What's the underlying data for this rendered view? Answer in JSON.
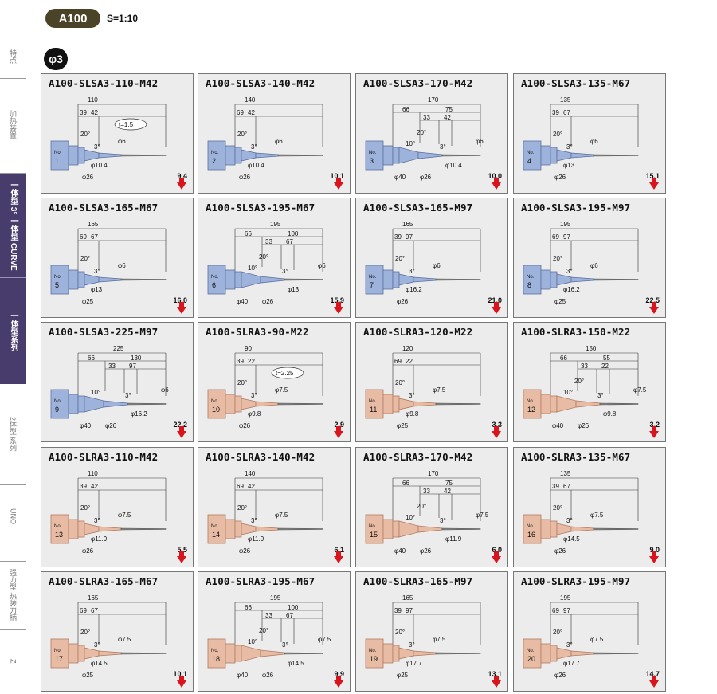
{
  "header": {
    "badge": "A100",
    "scale": "S=1:10",
    "section": "φ3"
  },
  "sidebar": {
    "items": [
      {
        "label": "特点",
        "active": false
      },
      {
        "label": "加热装置",
        "active": false
      },
      {
        "label": "一体型 3° 一体型 CURVE",
        "active": false
      },
      {
        "label": "一体型系列",
        "active": true
      },
      {
        "label": "2体型 系列",
        "active": false
      },
      {
        "label": "UNO",
        "active": false
      },
      {
        "label": "强力型 热装刀柄",
        "active": false
      },
      {
        "label": "Z",
        "active": false
      }
    ]
  },
  "colors": {
    "blue_holder": "#9eb3dc",
    "pink_holder": "#e8bca4",
    "arrow": "#d8141c",
    "card_bg": "#ececec"
  },
  "cards": [
    {
      "title": "A100-SLSA3-110-M42",
      "no": "1",
      "type": "blue",
      "dims": [
        "110",
        "39",
        "42",
        "20°",
        "3°",
        "φ6",
        "φ10.4",
        "φ26"
      ],
      "t": "t=1.5",
      "weight": "9.4"
    },
    {
      "title": "A100-SLSA3-140-M42",
      "no": "2",
      "type": "blue",
      "dims": [
        "140",
        "69",
        "42",
        "20°",
        "3°",
        "φ6",
        "φ10.4",
        "φ26"
      ],
      "t": "",
      "weight": "10.1"
    },
    {
      "title": "A100-SLSA3-170-M42",
      "no": "3",
      "type": "blue",
      "dims": [
        "170",
        "66",
        "75",
        "33",
        "42",
        "10°",
        "20°",
        "3°",
        "φ6",
        "φ10.4",
        "φ40",
        "φ26"
      ],
      "t": "",
      "weight": "10.0"
    },
    {
      "title": "A100-SLSA3-135-M67",
      "no": "4",
      "type": "blue",
      "dims": [
        "135",
        "39",
        "67",
        "20°",
        "3°",
        "φ6",
        "φ13",
        "φ26"
      ],
      "t": "",
      "weight": "15.1"
    },
    {
      "title": "A100-SLSA3-165-M67",
      "no": "5",
      "type": "blue",
      "dims": [
        "165",
        "69",
        "67",
        "20°",
        "3°",
        "φ6",
        "φ13",
        "φ25"
      ],
      "t": "",
      "weight": "16.0"
    },
    {
      "title": "A100-SLSA3-195-M67",
      "no": "6",
      "type": "blue",
      "dims": [
        "195",
        "66",
        "100",
        "33",
        "67",
        "10°",
        "20°",
        "3°",
        "φ6",
        "φ13",
        "φ40",
        "φ26"
      ],
      "t": "",
      "weight": "15.9"
    },
    {
      "title": "A100-SLSA3-165-M97",
      "no": "7",
      "type": "blue",
      "dims": [
        "165",
        "39",
        "97",
        "20°",
        "3°",
        "φ6",
        "φ16.2",
        "φ26"
      ],
      "t": "",
      "weight": "21.0"
    },
    {
      "title": "A100-SLSA3-195-M97",
      "no": "8",
      "type": "blue",
      "dims": [
        "195",
        "69",
        "97",
        "20°",
        "3°",
        "φ6",
        "φ16.2",
        "φ25"
      ],
      "t": "",
      "weight": "22.5"
    },
    {
      "title": "A100-SLSA3-225-M97",
      "no": "9",
      "type": "blue",
      "dims": [
        "225",
        "66",
        "130",
        "33",
        "97",
        "10°",
        "3°",
        "φ6",
        "φ16.2",
        "φ40",
        "φ26"
      ],
      "t": "",
      "weight": "22.2"
    },
    {
      "title": "A100-SLRA3-90-M22",
      "no": "10",
      "type": "pink",
      "dims": [
        "90",
        "39",
        "22",
        "20°",
        "3°",
        "φ7.5",
        "φ9.8",
        "φ26"
      ],
      "t": "t=2.25",
      "weight": "2.9"
    },
    {
      "title": "A100-SLRA3-120-M22",
      "no": "11",
      "type": "pink",
      "dims": [
        "120",
        "69",
        "22",
        "20°",
        "3°",
        "φ7.5",
        "φ9.8",
        "φ25"
      ],
      "t": "",
      "weight": "3.3"
    },
    {
      "title": "A100-SLRA3-150-M22",
      "no": "12",
      "type": "pink",
      "dims": [
        "150",
        "66",
        "55",
        "33",
        "22",
        "10°",
        "20°",
        "3°",
        "φ7.5",
        "φ9.8",
        "φ40",
        "φ26"
      ],
      "t": "",
      "weight": "3.2"
    },
    {
      "title": "A100-SLRA3-110-M42",
      "no": "13",
      "type": "pink",
      "dims": [
        "110",
        "39",
        "42",
        "20°",
        "3°",
        "φ7.5",
        "φ11.9",
        "φ26"
      ],
      "t": "",
      "weight": "5.5"
    },
    {
      "title": "A100-SLRA3-140-M42",
      "no": "14",
      "type": "pink",
      "dims": [
        "140",
        "69",
        "42",
        "20°",
        "3°",
        "φ7.5",
        "φ11.9",
        "φ26"
      ],
      "t": "",
      "weight": "6.1"
    },
    {
      "title": "A100-SLRA3-170-M42",
      "no": "15",
      "type": "pink",
      "dims": [
        "170",
        "66",
        "75",
        "33",
        "42",
        "10°",
        "20°",
        "3°",
        "φ7.5",
        "φ11.9",
        "φ40",
        "φ26"
      ],
      "t": "",
      "weight": "6.0"
    },
    {
      "title": "A100-SLRA3-135-M67",
      "no": "16",
      "type": "pink",
      "dims": [
        "135",
        "39",
        "67",
        "20°",
        "3°",
        "φ7.5",
        "φ14.5",
        "φ26"
      ],
      "t": "",
      "weight": "9.0"
    },
    {
      "title": "A100-SLRA3-165-M67",
      "no": "17",
      "type": "pink",
      "dims": [
        "165",
        "69",
        "67",
        "20°",
        "3°",
        "φ7.5",
        "φ14.5",
        "φ25"
      ],
      "t": "",
      "weight": "10.1"
    },
    {
      "title": "A100-SLRA3-195-M67",
      "no": "18",
      "type": "pink",
      "dims": [
        "195",
        "66",
        "100",
        "33",
        "67",
        "10°",
        "20°",
        "3°",
        "φ7.5",
        "φ14.5",
        "φ40",
        "φ26"
      ],
      "t": "",
      "weight": "9.9"
    },
    {
      "title": "A100-SLRA3-165-M97",
      "no": "19",
      "type": "pink",
      "dims": [
        "165",
        "39",
        "97",
        "20°",
        "3°",
        "φ7.5",
        "φ17.7",
        "φ25"
      ],
      "t": "",
      "weight": "13.1"
    },
    {
      "title": "A100-SLRA3-195-M97",
      "no": "20",
      "type": "pink",
      "dims": [
        "195",
        "69",
        "97",
        "20°",
        "3°",
        "φ7.5",
        "φ17.7",
        "φ26"
      ],
      "t": "",
      "weight": "14.7"
    }
  ]
}
